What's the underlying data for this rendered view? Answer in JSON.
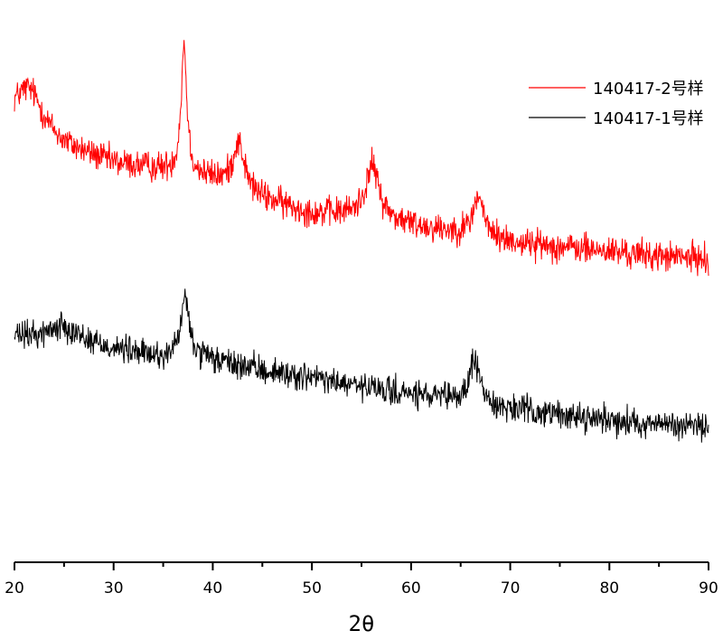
{
  "chart_data": {
    "type": "line",
    "title": "",
    "xlabel": "2θ",
    "ylabel": "",
    "xlim": [
      20,
      90
    ],
    "xticks": [
      "20",
      "30",
      "40",
      "50",
      "60",
      "70",
      "80",
      "90"
    ],
    "grid": false,
    "legend_position": "top-right",
    "series": [
      {
        "name": "140417-2号样",
        "color": "#ff0000",
        "baseline": [
          [
            20,
            1780
          ],
          [
            25,
            1660
          ],
          [
            30,
            1590
          ],
          [
            35,
            1560
          ],
          [
            40,
            1520
          ],
          [
            45,
            1440
          ],
          [
            50,
            1380
          ],
          [
            55,
            1370
          ],
          [
            60,
            1330
          ],
          [
            65,
            1300
          ],
          [
            70,
            1260
          ],
          [
            75,
            1240
          ],
          [
            80,
            1220
          ],
          [
            85,
            1200
          ],
          [
            90,
            1190
          ]
        ],
        "peaks": [
          {
            "x": 21.5,
            "height": 160,
            "width": 1.6
          },
          {
            "x": 37.1,
            "height": 540,
            "width": 0.35
          },
          {
            "x": 42.6,
            "height": 200,
            "width": 0.7
          },
          {
            "x": 56.1,
            "height": 220,
            "width": 0.8
          },
          {
            "x": 66.8,
            "height": 170,
            "width": 0.6
          }
        ],
        "noise": 45
      },
      {
        "name": "140417-1号样",
        "color": "#000000",
        "baseline": [
          [
            20,
            860
          ],
          [
            25,
            850
          ],
          [
            30,
            810
          ],
          [
            35,
            770
          ],
          [
            40,
            760
          ],
          [
            45,
            720
          ],
          [
            50,
            690
          ],
          [
            55,
            650
          ],
          [
            60,
            620
          ],
          [
            65,
            590
          ],
          [
            70,
            560
          ],
          [
            75,
            535
          ],
          [
            80,
            515
          ],
          [
            85,
            495
          ],
          [
            90,
            485
          ]
        ],
        "peaks": [
          {
            "x": 25.0,
            "height": 60,
            "width": 1.8
          },
          {
            "x": 37.2,
            "height": 250,
            "width": 0.55
          },
          {
            "x": 66.4,
            "height": 190,
            "width": 0.6
          }
        ],
        "noise": 42
      }
    ],
    "ylim": [
      0,
      2200
    ]
  }
}
